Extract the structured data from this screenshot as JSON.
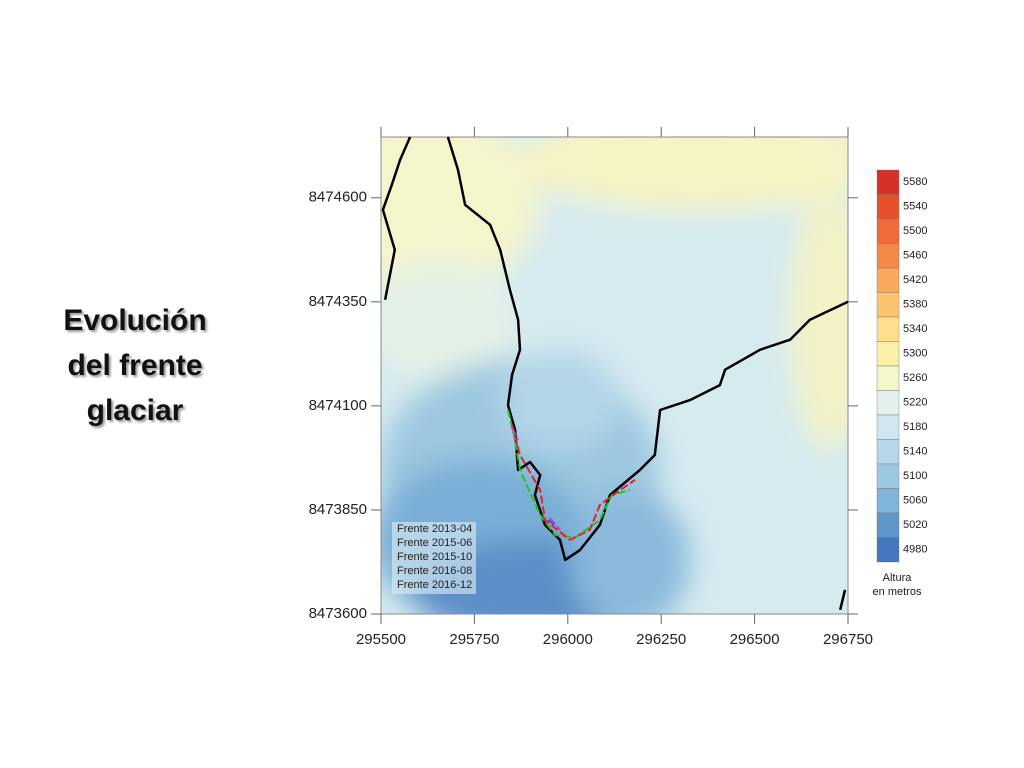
{
  "chart_data": {
    "type": "contour",
    "title": "Evolución del frente glaciar",
    "xlim": [
      295500,
      296750
    ],
    "xticks": [
      295500,
      295750,
      296000,
      296250,
      296500,
      296750
    ],
    "ylim": [
      8473600,
      8474746
    ],
    "yticks": [
      8473600,
      8473850,
      8474100,
      8474350,
      8474600
    ],
    "series": [
      {
        "name": "Frente 2013-04",
        "color": "#000000",
        "x": [
          295578,
          295551,
          295529,
          295505,
          295537,
          295511,
          null,
          295679,
          295706,
          295725,
          295792,
          295819,
          295845,
          295867,
          295872,
          295851,
          295840,
          295859,
          295867,
          295899,
          295926,
          295912,
          295939,
          295979,
          295993,
          296033,
          296086,
          296113,
          296193,
          296233,
          296247,
          296327,
          296407,
          296421,
          296515,
          296595,
          296648,
          296750,
          null,
          296742,
          296729
        ],
        "values": [
          8474746,
          8474691,
          8474631,
          8474571,
          8474475,
          8474355,
          null,
          8474746,
          8474667,
          8474583,
          8474535,
          8474475,
          8474379,
          8474307,
          8474235,
          8474175,
          8474102,
          8474042,
          8473946,
          8473965,
          8473934,
          8473886,
          8473814,
          8473778,
          8473730,
          8473754,
          8473814,
          8473886,
          8473946,
          8473982,
          8474090,
          8474114,
          8474150,
          8474187,
          8474235,
          8474259,
          8474307,
          8474350,
          null,
          8473658,
          8473610
        ]
      },
      {
        "name": "Frente 2015-06",
        "color": "#22c422",
        "x": [
          295840,
          295859,
          295872,
          295926,
          295966,
          296019,
          296086,
          296118,
          296166
        ],
        "values": [
          8474090,
          8474018,
          8473946,
          8473838,
          8473790,
          8473783,
          8473826,
          8473886,
          8473898
        ]
      },
      {
        "name": "Frente 2015-10",
        "color": "#e8202a",
        "x": [
          295851,
          295872,
          295926,
          295939,
          296006,
          296059,
          296086,
          296140,
          296180
        ],
        "values": [
          8474054,
          8473982,
          8473898,
          8473826,
          8473778,
          8473802,
          8473862,
          8473898,
          8473922
        ]
      },
      {
        "name": "Frente 2016-08",
        "color": "#c83cd8",
        "x": [
          295851,
          295867,
          null,
          295952,
          295979
        ],
        "values": [
          8474047,
          8474018,
          null,
          8473831,
          8473802
        ]
      },
      {
        "name": "Frente 2016-12",
        "color": "#5050c8",
        "x": [
          295947,
          295966
        ],
        "values": [
          8473826,
          8473814
        ]
      }
    ],
    "colorbar": {
      "label": [
        "Altura",
        "en metros"
      ],
      "levels": [
        5580,
        5540,
        5500,
        5460,
        5420,
        5380,
        5340,
        5300,
        5260,
        5220,
        5180,
        5140,
        5100,
        5060,
        5020,
        4980
      ],
      "colors": [
        "#d73027",
        "#e8502c",
        "#f06a3a",
        "#f5894a",
        "#f9a95c",
        "#fdc46f",
        "#fddf8d",
        "#fbf0a8",
        "#f3f6c8",
        "#e2f1ee",
        "#cfe7f1",
        "#b7d8ea",
        "#9dc8e2",
        "#7fb3d8",
        "#5f97ca",
        "#4676bd"
      ]
    }
  }
}
